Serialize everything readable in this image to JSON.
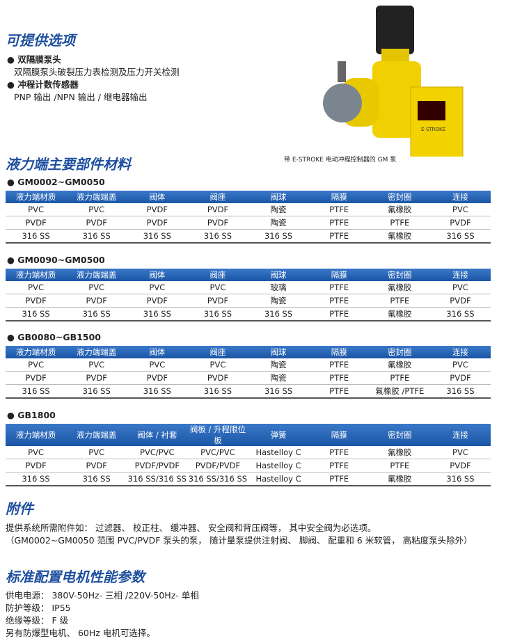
{
  "options": {
    "title": "可提供选项",
    "items": [
      {
        "title": "双隔膜泵头",
        "text": "双隔膜泵头破裂压力表检测及压力开关检测"
      },
      {
        "title": "冲程计数传感器",
        "text": "PNP 输出 /NPN 输出 / 继电器输出"
      }
    ],
    "image_caption": "带 E-STROKE 电动冲程控制器的 GM 泵",
    "badge": "E-STROKE"
  },
  "materials": {
    "title": "液力端主要部件材料",
    "tables": [
      {
        "name": "GM0002~GM0050",
        "header": [
          "液力端材质",
          "液力端端盖",
          "阀体",
          "阀座",
          "阀球",
          "隔膜",
          "密封圈",
          "连接"
        ],
        "rows": [
          [
            "PVC",
            "PVC",
            "PVDF",
            "PVDF",
            "陶瓷",
            "PTFE",
            "氟橡胶",
            "PVC"
          ],
          [
            "PVDF",
            "PVDF",
            "PVDF",
            "PVDF",
            "陶瓷",
            "PTFE",
            "PTFE",
            "PVDF"
          ],
          [
            "316 SS",
            "316 SS",
            "316 SS",
            "316 SS",
            "316 SS",
            "PTFE",
            "氟橡胶",
            "316 SS"
          ]
        ]
      },
      {
        "name": "GM0090~GM0500",
        "header": [
          "液力端材质",
          "液力端端盖",
          "阀体",
          "阀座",
          "阀球",
          "隔膜",
          "密封圈",
          "连接"
        ],
        "rows": [
          [
            "PVC",
            "PVC",
            "PVC",
            "PVC",
            "玻璃",
            "PTFE",
            "氟橡胶",
            "PVC"
          ],
          [
            "PVDF",
            "PVDF",
            "PVDF",
            "PVDF",
            "陶瓷",
            "PTFE",
            "PTFE",
            "PVDF"
          ],
          [
            "316 SS",
            "316 SS",
            "316 SS",
            "316 SS",
            "316 SS",
            "PTFE",
            "氟橡胶",
            "316 SS"
          ]
        ]
      },
      {
        "name": "GB0080~GB1500",
        "header": [
          "液力端材质",
          "液力端端盖",
          "阀体",
          "阀座",
          "阀球",
          "隔膜",
          "密封圈",
          "连接"
        ],
        "rows": [
          [
            "PVC",
            "PVC",
            "PVC",
            "PVC",
            "陶瓷",
            "PTFE",
            "氟橡胶",
            "PVC"
          ],
          [
            "PVDF",
            "PVDF",
            "PVDF",
            "PVDF",
            "陶瓷",
            "PTFE",
            "PTFE",
            "PVDF"
          ],
          [
            "316 SS",
            "316 SS",
            "316 SS",
            "316 SS",
            "316 SS",
            "PTFE",
            "氟橡胶 /PTFE",
            "316 SS"
          ]
        ]
      },
      {
        "name": "GB1800",
        "header": [
          "液力端材质",
          "液力端端盖",
          "阀体 / 衬套",
          "阀板 / 升程限位板",
          "弹簧",
          "隔膜",
          "密封圈",
          "连接"
        ],
        "rows": [
          [
            "PVC",
            "PVC",
            "PVC/PVC",
            "PVC/PVC",
            "Hastelloy C",
            "PTFE",
            "氟橡胶",
            "PVC"
          ],
          [
            "PVDF",
            "PVDF",
            "PVDF/PVDF",
            "PVDF/PVDF",
            "Hastelloy C",
            "PTFE",
            "PTFE",
            "PVDF"
          ],
          [
            "316 SS",
            "316 SS",
            "316 SS/316 SS",
            "316 SS/316 SS",
            "Hastelloy C",
            "PTFE",
            "氟橡胶",
            "316 SS"
          ]
        ]
      }
    ]
  },
  "accessories": {
    "title": "附件",
    "lines": [
      "提供系统所需附件如： 过滤器、 校正柱、 缓冲器、 安全阀和背压阀等， 其中安全阀为必选项。",
      "（GM0002~GM0050 范围 PVC/PVDF 泵头的泵， 随计量泵提供注射阀、 脚阀、 配重和 6 米软管， 高粘度泵头除外）"
    ]
  },
  "motor": {
    "title": "标准配置电机性能参数",
    "lines": [
      "供电电源： 380V-50Hz- 三相 /220V-50Hz- 单相",
      "防护等级： IP55",
      "绝缘等级： F 级",
      "另有防爆型电机、 60Hz 电机可选择。"
    ]
  }
}
